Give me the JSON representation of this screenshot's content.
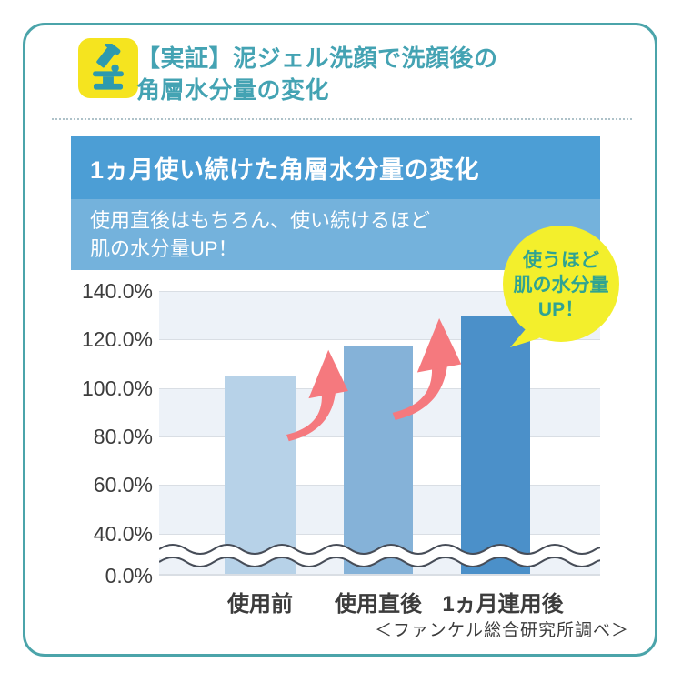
{
  "header": {
    "title_line1": "【実証】泥ジェル洗顔で洗顔後の",
    "title_line2": "角層水分量の変化",
    "icon": "microscope-icon",
    "title_color": "#44A3B3",
    "icon_bg": "#F5E41F"
  },
  "panel": {
    "title": "1ヵ月使い続けた角層水分量の変化",
    "subtitle_line1": "使用直後はもちろん、使い続けるほど",
    "subtitle_line2": "肌の水分量UP！",
    "title_bg": "#4C9ED5",
    "subtitle_bg": "#74B2DC"
  },
  "badge": {
    "line1": "使うほど",
    "line2": "肌の水分量",
    "line3": "UP！",
    "bg": "#F3EF2C",
    "text_color": "#2FA392"
  },
  "chart_data": {
    "type": "bar",
    "title": "1ヵ月使い続けた角層水分量の変化",
    "categories": [
      "使用前",
      "使用直後",
      "1ヵ月連用後"
    ],
    "values": [
      104,
      117,
      129
    ],
    "unit": "%",
    "ylim": [
      0,
      140
    ],
    "ytick_labels": [
      "140.0%",
      "120.0%",
      "100.0%",
      "80.0%",
      "60.0%",
      "40.0%",
      "0.0%"
    ],
    "axis_break": "wavy break hides 20.0% band near axis bottom",
    "grid": "horizontal lines every 20%, alternating band fills",
    "bar_colors": [
      "#B7D2E8",
      "#85B2D8",
      "#4B90C9"
    ],
    "band_fill": "#EDF2F8",
    "gridline_color": "#D9DEE4",
    "annotations": [
      "curved up arrow between 使用前 and 使用直後",
      "curved up arrow between 使用直後 and 1ヵ月連用後"
    ],
    "arrow_color": "#F5797E"
  },
  "footer": {
    "source": "＜ファンケル総合研究所調べ＞"
  }
}
